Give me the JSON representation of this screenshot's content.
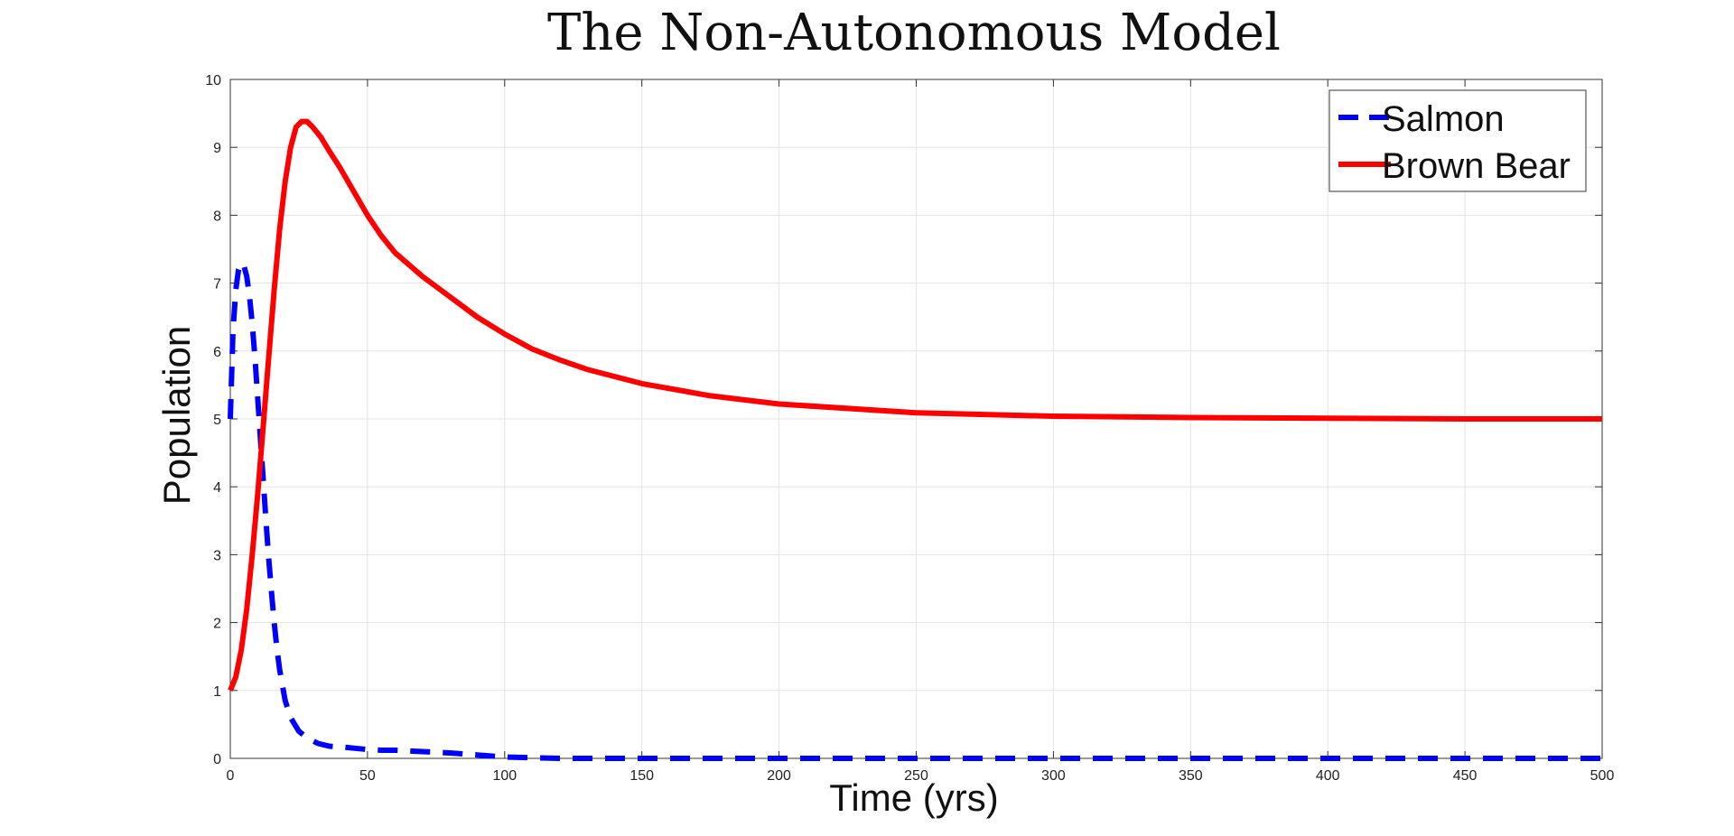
{
  "chart_data": {
    "type": "line",
    "title": "The Non-Autonomous Model",
    "xlabel": "Time (yrs)",
    "ylabel": "Population",
    "xlim": [
      0,
      500
    ],
    "ylim": [
      0,
      10
    ],
    "x_ticks": [
      0,
      50,
      100,
      150,
      200,
      250,
      300,
      350,
      400,
      450,
      500
    ],
    "y_ticks": [
      0,
      1,
      2,
      3,
      4,
      5,
      6,
      7,
      8,
      9,
      10
    ],
    "grid": true,
    "legend_position": "top-right",
    "series": [
      {
        "name": "Salmon",
        "color": "#0000ff",
        "style": "dashed",
        "x": [
          0,
          1,
          2,
          3,
          4,
          5,
          6,
          7,
          8,
          9,
          10,
          11,
          12,
          13,
          14,
          15,
          16,
          17,
          18,
          20,
          22,
          25,
          28,
          32,
          36,
          40,
          45,
          50,
          55,
          60,
          70,
          80,
          90,
          100,
          120,
          150,
          200,
          250,
          300,
          350,
          400,
          450,
          500
        ],
        "y": [
          5.0,
          6.3,
          6.9,
          7.2,
          7.3,
          7.25,
          7.1,
          6.8,
          6.4,
          5.9,
          5.3,
          4.7,
          4.1,
          3.5,
          2.95,
          2.45,
          2.0,
          1.62,
          1.3,
          0.85,
          0.6,
          0.4,
          0.3,
          0.22,
          0.18,
          0.17,
          0.15,
          0.13,
          0.12,
          0.12,
          0.1,
          0.08,
          0.05,
          0.02,
          0.0,
          0.0,
          0.0,
          0.0,
          0.0,
          0.0,
          0.0,
          0.0,
          0.0
        ]
      },
      {
        "name": "Brown Bear",
        "color": "#ff0000",
        "style": "solid",
        "x": [
          0,
          2,
          4,
          6,
          8,
          10,
          12,
          14,
          16,
          18,
          20,
          22,
          24,
          26,
          28,
          30,
          33,
          36,
          40,
          45,
          50,
          55,
          60,
          70,
          80,
          90,
          100,
          110,
          120,
          130,
          150,
          175,
          200,
          250,
          300,
          350,
          400,
          450,
          500
        ],
        "y": [
          1.0,
          1.2,
          1.6,
          2.2,
          3.0,
          3.9,
          4.9,
          5.9,
          6.9,
          7.8,
          8.5,
          9.0,
          9.3,
          9.38,
          9.38,
          9.3,
          9.15,
          8.95,
          8.7,
          8.35,
          8.0,
          7.7,
          7.45,
          7.1,
          6.8,
          6.5,
          6.25,
          6.03,
          5.87,
          5.73,
          5.52,
          5.34,
          5.22,
          5.09,
          5.04,
          5.02,
          5.01,
          5.0,
          5.0
        ]
      }
    ]
  }
}
